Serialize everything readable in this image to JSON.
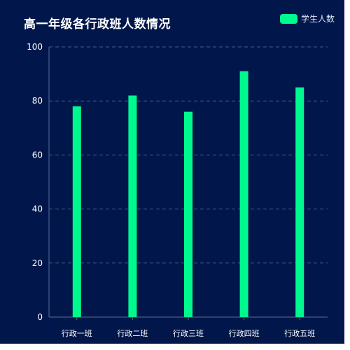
{
  "colors": {
    "background": "#01174b",
    "bar": "#00f98f",
    "axis_text": "#ffffff",
    "grid": "#4a5b86",
    "axis_line": "#5a6b96"
  },
  "chart_data": {
    "type": "bar",
    "title": "高一年级各行政班人数情况",
    "categories": [
      "行政一班",
      "行政二班",
      "行政三班",
      "行政四班",
      "行政五班"
    ],
    "series": [
      {
        "name": "学生人数",
        "values": [
          78,
          82,
          76,
          91,
          85
        ]
      }
    ],
    "ylim": [
      0,
      100
    ],
    "yticks": [
      0,
      20,
      40,
      60,
      80,
      100
    ],
    "xlabel": "",
    "ylabel": "",
    "grid": true,
    "grid_style": "dashed",
    "legend_position": "top-right"
  }
}
